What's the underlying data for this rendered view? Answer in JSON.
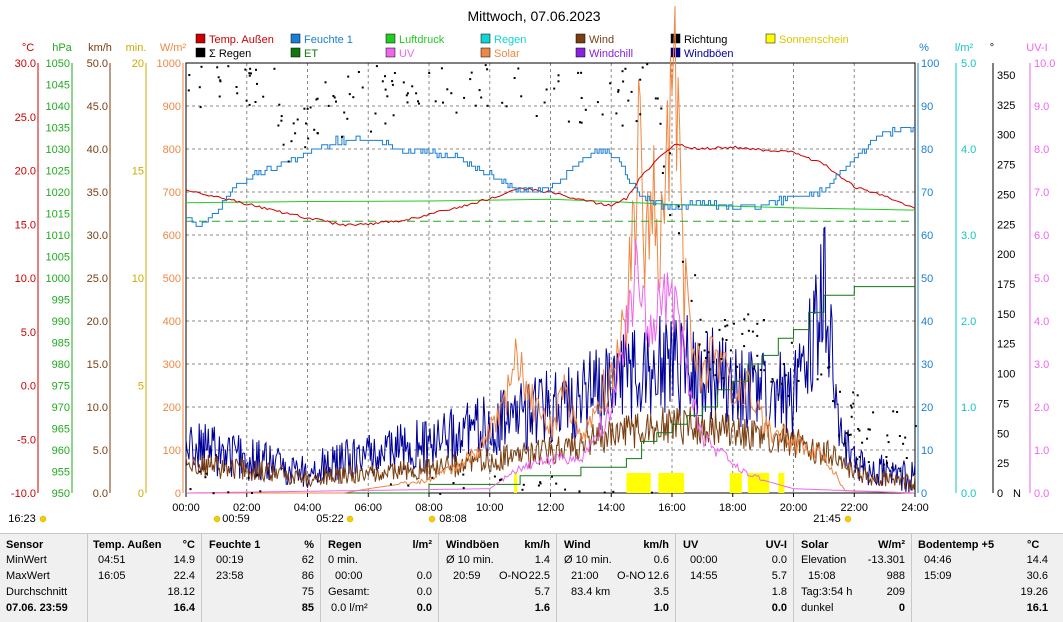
{
  "title": "Mittwoch, 07.06.2023",
  "legend": [
    {
      "label": "Temp. Außen",
      "color": "#cc0000"
    },
    {
      "label": "Feuchte 1",
      "color": "#1a7fd4"
    },
    {
      "label": "Luftdruck",
      "color": "#22cc22"
    },
    {
      "label": "Regen",
      "color": "#11d4d4"
    },
    {
      "label": "Wind",
      "color": "#7a3e10"
    },
    {
      "label": "Richtung",
      "color": "#000000"
    },
    {
      "label": "Sonnenschein",
      "color": "#ffff00"
    },
    {
      "label": "Σ Regen",
      "color": "#000000"
    },
    {
      "label": "ET",
      "color": "#117711"
    },
    {
      "label": "UV",
      "color": "#ee66ee"
    },
    {
      "label": "Solar",
      "color": "#ee8844"
    },
    {
      "label": "Windchill",
      "color": "#8822dd"
    },
    {
      "label": "Windböen",
      "color": "#000099"
    }
  ],
  "axis_units": {
    "temp": "°C",
    "hpa": "hPa",
    "kmh": "km/h",
    "min": "min.",
    "wm2": "W/m²",
    "pct": "%",
    "lm2": "l/m²",
    "deg": "°",
    "uvi": "UV-I"
  },
  "axes": {
    "temp": [
      "30.0",
      "25.0",
      "20.0",
      "15.0",
      "10.0",
      "5.0",
      "0.0",
      "-5.0",
      "-10.0"
    ],
    "hpa": [
      "1050",
      "1045",
      "1040",
      "1035",
      "1030",
      "1025",
      "1020",
      "1015",
      "1010",
      "1005",
      "1000",
      "995",
      "990",
      "985",
      "980",
      "975",
      "970",
      "965",
      "960",
      "955",
      "950"
    ],
    "kmh": [
      "50.0",
      "45.0",
      "40.0",
      "35.0",
      "30.0",
      "25.0",
      "20.0",
      "15.0",
      "10.0",
      "5.0",
      "0.0"
    ],
    "min": [
      "20",
      "15",
      "10",
      "5",
      "0"
    ],
    "wm2": [
      "1000",
      "900",
      "800",
      "700",
      "600",
      "500",
      "400",
      "300",
      "200",
      "100",
      "0"
    ],
    "pct": [
      "100",
      "90",
      "80",
      "70",
      "60",
      "50",
      "40",
      "30",
      "20",
      "10",
      "0"
    ],
    "lm2": [
      "5.0",
      "4.0",
      "3.0",
      "2.0",
      "1.0",
      "0.0"
    ],
    "deg": [
      "350",
      "325",
      "300",
      "275",
      "250",
      "225",
      "200",
      "175",
      "150",
      "125",
      "100",
      "75",
      "50",
      "25",
      "0"
    ],
    "deg_n": "N",
    "uvi": [
      "10.0",
      "9.0",
      "8.0",
      "7.0",
      "6.0",
      "5.0",
      "4.0",
      "3.0",
      "2.0",
      "1.0",
      "0.0"
    ]
  },
  "xticks": [
    "00:00",
    "02:00",
    "04:00",
    "06:00",
    "08:00",
    "10:00",
    "12:00",
    "14:00",
    "16:00",
    "18:00",
    "20:00",
    "22:00",
    "24:00"
  ],
  "events": {
    "sunrise": "05:22",
    "sunset": "21:45",
    "moonset": "16:23",
    "moonrise": "00:59",
    "transit": "08:08"
  },
  "chart_data": {
    "type": "line",
    "title": "Mittwoch, 07.06.2023",
    "x_unit": "hours",
    "xlim": [
      0,
      24
    ],
    "series": [
      {
        "name": "Temp. Außen",
        "axis": "°C",
        "ylim": [
          -10,
          30
        ],
        "color": "#cc0000",
        "points": [
          [
            0,
            18.1
          ],
          [
            1,
            17.6
          ],
          [
            2,
            16.9
          ],
          [
            3,
            16.2
          ],
          [
            4,
            15.6
          ],
          [
            5,
            15.0
          ],
          [
            5.5,
            14.9
          ],
          [
            6,
            15.0
          ],
          [
            7,
            15.3
          ],
          [
            8,
            15.9
          ],
          [
            9,
            16.6
          ],
          [
            10,
            17.4
          ],
          [
            11,
            18.3
          ],
          [
            12,
            18.0
          ],
          [
            13,
            17.3
          ],
          [
            14,
            16.7
          ],
          [
            14.5,
            17.4
          ],
          [
            15,
            19.5
          ],
          [
            15.5,
            21.0
          ],
          [
            16.1,
            22.4
          ],
          [
            17,
            22.0
          ],
          [
            18,
            22.2
          ],
          [
            19,
            21.9
          ],
          [
            20,
            21.7
          ],
          [
            21,
            20.6
          ],
          [
            22,
            18.5
          ],
          [
            23,
            17.6
          ],
          [
            24,
            16.4
          ]
        ]
      },
      {
        "name": "Feuchte 1",
        "axis": "%",
        "ylim": [
          0,
          100
        ],
        "color": "#1a7fd4",
        "points": [
          [
            0,
            64
          ],
          [
            0.33,
            62
          ],
          [
            1,
            65
          ],
          [
            1.5,
            71
          ],
          [
            2,
            73
          ],
          [
            3,
            76
          ],
          [
            4,
            79
          ],
          [
            5,
            82
          ],
          [
            6,
            82
          ],
          [
            7,
            80
          ],
          [
            8,
            79
          ],
          [
            9,
            78
          ],
          [
            10,
            74
          ],
          [
            11,
            70
          ],
          [
            12,
            71
          ],
          [
            13,
            77
          ],
          [
            13.5,
            80
          ],
          [
            14,
            79
          ],
          [
            14.5,
            74
          ],
          [
            15,
            69
          ],
          [
            16,
            66
          ],
          [
            17,
            68
          ],
          [
            18,
            66
          ],
          [
            19,
            67
          ],
          [
            20,
            69
          ],
          [
            21,
            70
          ],
          [
            22,
            78
          ],
          [
            23,
            84
          ],
          [
            24,
            85
          ]
        ]
      },
      {
        "name": "Luftdruck",
        "axis": "hPa",
        "ylim": [
          950,
          1050
        ],
        "color": "#22cc22",
        "points": [
          [
            0,
            1017.5
          ],
          [
            4,
            1017.8
          ],
          [
            8,
            1017.9
          ],
          [
            12,
            1018.3
          ],
          [
            14,
            1017.8
          ],
          [
            16,
            1017.1
          ],
          [
            20,
            1016.3
          ],
          [
            24,
            1015.8
          ]
        ]
      },
      {
        "name": "Solar",
        "axis": "W/m²",
        "ylim": [
          0,
          1000
        ],
        "color": "#ee8844",
        "points": [
          [
            0,
            0
          ],
          [
            5.2,
            0
          ],
          [
            6,
            10
          ],
          [
            8,
            30
          ],
          [
            9.5,
            90
          ],
          [
            10.5,
            200
          ],
          [
            10.9,
            330
          ],
          [
            11.3,
            230
          ],
          [
            12,
            150
          ],
          [
            12.5,
            240
          ],
          [
            13,
            130
          ],
          [
            14,
            280
          ],
          [
            14.5,
            420
          ],
          [
            14.8,
            700
          ],
          [
            15,
            950
          ],
          [
            15.1,
            600
          ],
          [
            15.4,
            820
          ],
          [
            15.6,
            560
          ],
          [
            15.9,
            880
          ],
          [
            16.1,
            990
          ],
          [
            16.4,
            500
          ],
          [
            16.7,
            360
          ],
          [
            17,
            280
          ],
          [
            17.5,
            340
          ],
          [
            18,
            210
          ],
          [
            18.5,
            290
          ],
          [
            19,
            160
          ],
          [
            20,
            120
          ],
          [
            21,
            90
          ],
          [
            21.7,
            5
          ],
          [
            24,
            0
          ]
        ]
      },
      {
        "name": "UV",
        "axis": "UV-I",
        "ylim": [
          0,
          10
        ],
        "color": "#ee66ee",
        "points": [
          [
            0,
            0
          ],
          [
            10,
            0.1
          ],
          [
            11,
            0.6
          ],
          [
            12,
            0.8
          ],
          [
            13,
            0.8
          ],
          [
            14,
            2.0
          ],
          [
            14.5,
            3.9
          ],
          [
            14.9,
            5.7
          ],
          [
            15.2,
            4.1
          ],
          [
            15.8,
            4.8
          ],
          [
            16.2,
            4.1
          ],
          [
            16.6,
            2.5
          ],
          [
            17,
            1.3
          ],
          [
            18,
            0.7
          ],
          [
            19,
            0.3
          ],
          [
            20,
            0.1
          ],
          [
            24,
            0
          ]
        ]
      },
      {
        "name": "Wind",
        "axis": "km/h",
        "ylim": [
          0,
          50
        ],
        "color": "#7a3e10",
        "points": [
          [
            0,
            3
          ],
          [
            2,
            2.5
          ],
          [
            4,
            1.5
          ],
          [
            6,
            2
          ],
          [
            8,
            2.5
          ],
          [
            10,
            3.5
          ],
          [
            12,
            4.5
          ],
          [
            14,
            6.5
          ],
          [
            16,
            7.5
          ],
          [
            18,
            7
          ],
          [
            20,
            5.5
          ],
          [
            21,
            4.5
          ],
          [
            22,
            2
          ],
          [
            24,
            1
          ]
        ]
      },
      {
        "name": "Windböen",
        "axis": "km/h",
        "ylim": [
          0,
          50
        ],
        "color": "#000099",
        "points": [
          [
            0,
            5
          ],
          [
            2,
            3.5
          ],
          [
            4,
            2
          ],
          [
            6,
            4
          ],
          [
            8,
            5
          ],
          [
            10,
            7
          ],
          [
            12,
            9
          ],
          [
            14,
            12
          ],
          [
            15,
            13
          ],
          [
            16,
            14
          ],
          [
            17,
            13
          ],
          [
            18,
            12
          ],
          [
            20,
            10
          ],
          [
            20.98,
            22.5
          ],
          [
            21.5,
            6
          ],
          [
            22,
            3
          ],
          [
            24,
            1.4
          ]
        ]
      },
      {
        "name": "ET",
        "axis": "l/m²",
        "ylim": [
          0,
          5
        ],
        "color": "#117711",
        "points": [
          [
            0,
            0
          ],
          [
            8,
            0.05
          ],
          [
            10,
            0.1
          ],
          [
            12,
            0.2
          ],
          [
            14,
            0.3
          ],
          [
            15,
            0.55
          ],
          [
            16,
            0.8
          ],
          [
            17,
            1.0
          ],
          [
            18,
            1.3
          ],
          [
            19,
            1.6
          ],
          [
            20,
            1.9
          ],
          [
            21,
            2.3
          ],
          [
            22,
            2.4
          ],
          [
            24,
            2.4
          ]
        ]
      }
    ],
    "richtung_samples": [
      [
        2.3,
        350
      ],
      [
        2.9,
        330
      ],
      [
        3.1,
        300
      ],
      [
        6.4,
        335
      ],
      [
        7.3,
        350
      ],
      [
        12.0,
        345
      ],
      [
        13.5,
        330
      ],
      [
        15.2,
        345
      ],
      [
        17.0,
        120
      ],
      [
        18.5,
        130
      ],
      [
        20.5,
        95
      ],
      [
        22.5,
        45
      ],
      [
        23.5,
        40
      ]
    ]
  },
  "stats": {
    "sensor": {
      "header": "Sensor",
      "rows": [
        "MinWert",
        "MaxWert",
        "Durchschnitt"
      ],
      "footer": "07.06.  23:59"
    },
    "temp": {
      "header": "Temp. Außen",
      "unit": "°C",
      "min_time": "04:51",
      "min": "14.9",
      "max_time": "16:05",
      "max": "22.4",
      "avg": "18.12",
      "current": "16.4"
    },
    "feuchte": {
      "header": "Feuchte 1",
      "unit": "%",
      "min_time": "00:19",
      "min": "62",
      "max_time": "23:58",
      "max": "86",
      "avg": "75",
      "current": "85"
    },
    "regen": {
      "header": "Regen",
      "unit": "l/m²",
      "r1_label": "0 min.",
      "r2_label": "00:00",
      "r2_val": "0.0",
      "r3_label": "Gesamt:",
      "r3_val": "0.0",
      "footer_label": "0.0 l/m²",
      "current": "0.0"
    },
    "windboeen": {
      "header": "Windböen",
      "unit": "km/h",
      "r1_label": "Ø 10 min.",
      "r1_val": "1.4",
      "r2_time": "20:59",
      "r2_dir": "O-NO",
      "r2_val": "22.5",
      "avg": "5.7",
      "current": "1.6"
    },
    "wind": {
      "header": "Wind",
      "unit": "km/h",
      "r1_label": "Ø 10 min.",
      "r1_val": "0.6",
      "r2_time": "21:00",
      "r2_dir": "O-NO",
      "r2_val": "12.6",
      "r3_label": "83.4 km",
      "r3_val": "3.5",
      "current": "1.0"
    },
    "uv": {
      "header": "UV",
      "unit": "UV-I",
      "r1_label": "00:00",
      "r1_val": "0.0",
      "r2_label": "14:55",
      "r2_val": "5.7",
      "avg": "1.8",
      "current": "0.0"
    },
    "solar": {
      "header": "Solar",
      "unit": "W/m²",
      "r1_label": "Elevation",
      "r1_val": "-13.301",
      "r2_label": "15:08",
      "r2_val": "988",
      "r3_label": "Tag:3:54 h",
      "r3_val": "209",
      "footer_label": "dunkel",
      "current": "0"
    },
    "boden": {
      "header": "Bodentemp +5",
      "unit": "°C",
      "r1_label": "04:46",
      "r1_val": "14.4",
      "r2_label": "15:09",
      "r2_val": "30.6",
      "avg": "19.26",
      "current": "16.1"
    }
  },
  "colors": {
    "grid": "#888888",
    "frame": "#000000",
    "stat_bg": "#f0f0f0"
  }
}
